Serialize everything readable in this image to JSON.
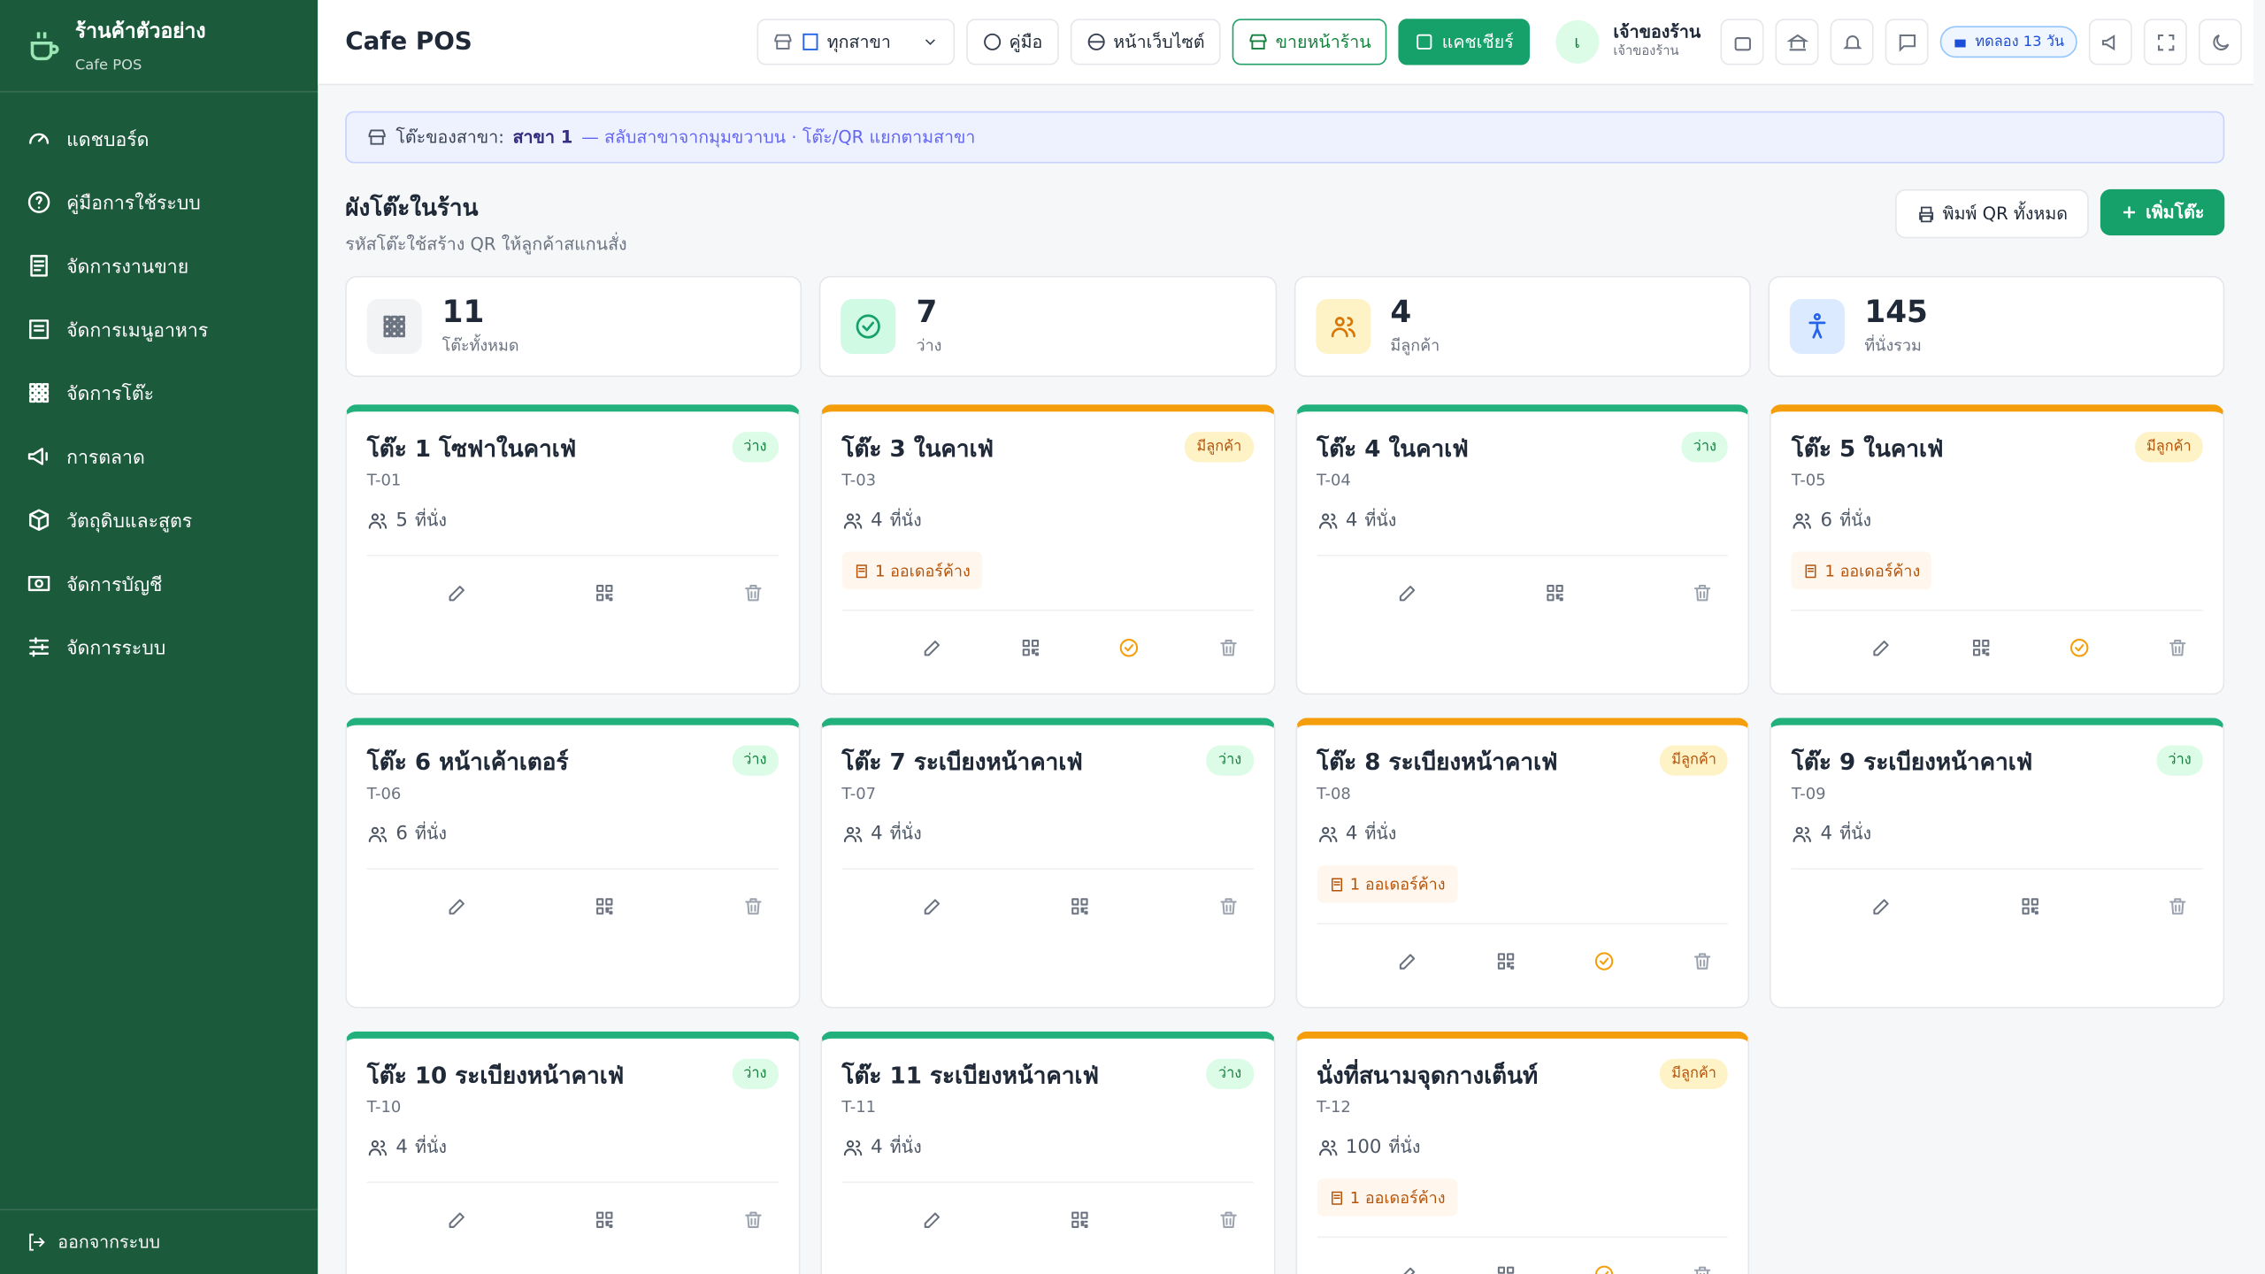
{
  "sidebar": {
    "brand": "ร้านค้าตัวอย่าง",
    "brand_sub": "Cafe POS",
    "nav": [
      "แดชบอร์ด",
      "คู่มือการใช้ระบบ",
      "จัดการงานขาย",
      "จัดการเมนูอาหาร",
      "จัดการโต๊ะ",
      "การตลาด",
      "วัตถุดิบและสูตร",
      "จัดการบัญชี",
      "จัดการระบบ"
    ],
    "logout": "ออกจากระบบ"
  },
  "header": {
    "title": "Cafe POS",
    "branch_select": "ทุกสาขา",
    "guide": "คู่มือ",
    "website": "หน้าเว็บไซต์",
    "storefront": "ขายหน้าร้าน",
    "cashier": "แคชเชียร์",
    "avatar": "เ",
    "user_name": "เจ้าของร้าน",
    "user_role": "เจ้าของร้าน",
    "trial": "ทดลอง 13 วัน"
  },
  "banner": {
    "label": "โต๊ะของสาขา:",
    "branch": "สาขา 1",
    "note": "— สลับสาขาจากมุมขวาบน · โต๊ะ/QR แยกตามสาขา"
  },
  "section": {
    "title": "ผังโต๊ะในร้าน",
    "subtitle": "รหัสโต๊ะใช้สร้าง QR ให้ลูกค้าสแกนสั่ง",
    "print_button": "พิมพ์ QR ทั้งหมด",
    "add_button": "เพิ่มโต๊ะ"
  },
  "stats": [
    {
      "value": "11",
      "label": "โต๊ะทั้งหมด"
    },
    {
      "value": "7",
      "label": "ว่าง"
    },
    {
      "value": "4",
      "label": "มีลูกค้า"
    },
    {
      "value": "145",
      "label": "ที่นั่งรวม"
    }
  ],
  "seat_unit": "ที่นั่ง",
  "tables": [
    {
      "name": "โต๊ะ 1 โซฟาในคาเฟ่",
      "code": "T-01",
      "seats": "5",
      "status": "ว่าง",
      "orders": null
    },
    {
      "name": "โต๊ะ 3 ในคาเฟ่",
      "code": "T-03",
      "seats": "4",
      "status": "มีลูกค้า",
      "orders": "1 ออเดอร์ค้าง"
    },
    {
      "name": "โต๊ะ 4 ในคาเฟ่",
      "code": "T-04",
      "seats": "4",
      "status": "ว่าง",
      "orders": null
    },
    {
      "name": "โต๊ะ 5 ในคาเฟ่",
      "code": "T-05",
      "seats": "6",
      "status": "มีลูกค้า",
      "orders": "1 ออเดอร์ค้าง"
    },
    {
      "name": "โต๊ะ 6 หน้าเค้าเตอร์",
      "code": "T-06",
      "seats": "6",
      "status": "ว่าง",
      "orders": null
    },
    {
      "name": "โต๊ะ 7 ระเบียงหน้าคาเฟ่",
      "code": "T-07",
      "seats": "4",
      "status": "ว่าง",
      "orders": null
    },
    {
      "name": "โต๊ะ 8 ระเบียงหน้าคาเฟ่",
      "code": "T-08",
      "seats": "4",
      "status": "มีลูกค้า",
      "orders": "1 ออเดอร์ค้าง"
    },
    {
      "name": "โต๊ะ 9 ระเบียงหน้าคาเฟ่",
      "code": "T-09",
      "seats": "4",
      "status": "ว่าง",
      "orders": null
    },
    {
      "name": "โต๊ะ 10 ระเบียงหน้าคาเฟ่",
      "code": "T-10",
      "seats": "4",
      "status": "ว่าง",
      "orders": null
    },
    {
      "name": "โต๊ะ 11 ระเบียงหน้าคาเฟ่",
      "code": "T-11",
      "seats": "4",
      "status": "ว่าง",
      "orders": null
    },
    {
      "name": "นั่งที่สนามจุดกางเต็นท์",
      "code": "T-12",
      "seats": "100",
      "status": "มีลูกค้า",
      "orders": "1 ออเดอร์ค้าง"
    }
  ]
}
